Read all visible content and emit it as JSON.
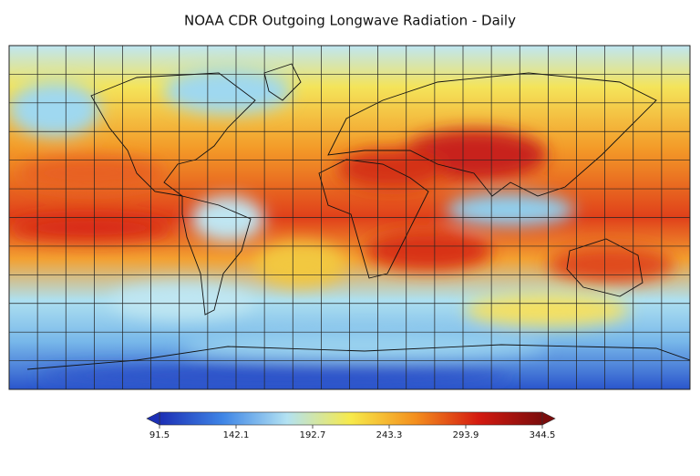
{
  "map": {
    "title": "NOAA CDR Outgoing Longwave Radiation - Daily",
    "colorbar": {
      "range": [
        91.5,
        344.5
      ],
      "ticks": [
        91.5,
        142.1,
        192.7,
        243.3,
        293.9,
        344.5
      ],
      "colors": [
        "#1c2fb5",
        "#3f86e6",
        "#b3e2f2",
        "#f7ea4a",
        "#f4901e",
        "#d41a10",
        "#7b0c0c"
      ]
    }
  }
}
